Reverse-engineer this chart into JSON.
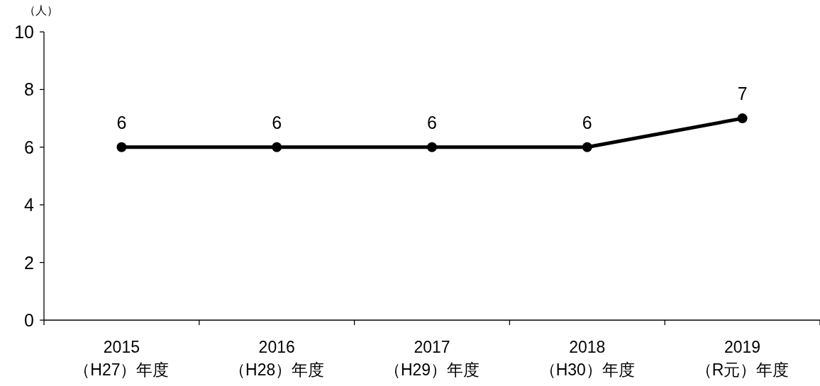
{
  "chart_data": {
    "type": "line",
    "ylabel": "（人）",
    "categories": [
      "2015\n（H27）年度",
      "2016\n（H28）年度",
      "2017\n（H29）年度",
      "2018\n（H30）年度",
      "2019\n（R元）年度"
    ],
    "values": [
      6,
      6,
      6,
      6,
      7
    ],
    "color": "#000000",
    "marker": "circle",
    "data_labels": true,
    "grid": false,
    "ylim": [
      0,
      10
    ],
    "yticks": [
      0,
      2,
      4,
      6,
      8,
      10
    ]
  }
}
